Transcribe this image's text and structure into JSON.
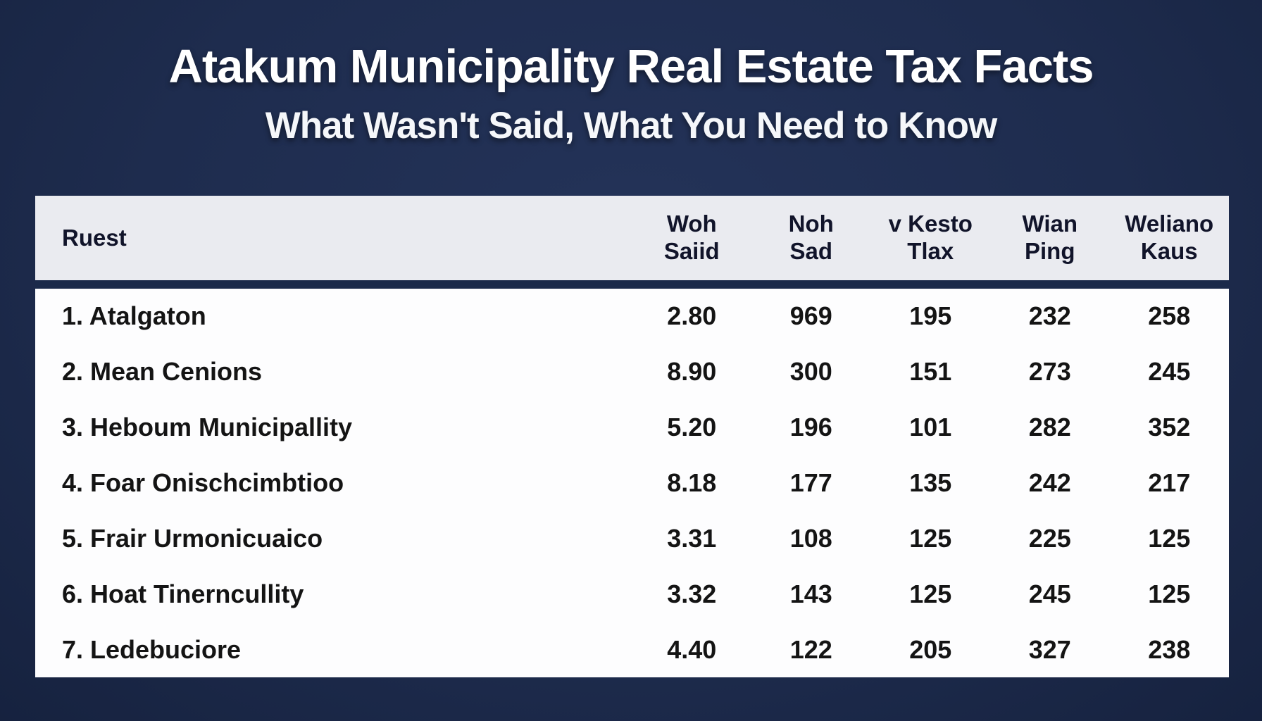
{
  "title": "Atakum Municipality Real Estate Tax Facts",
  "subtitle": "What Wasn't Said, What You Need to Know",
  "colors": {
    "background": "#1e2c4e",
    "header_bg": "#eaebf0",
    "body_bg": "#fdfdfe",
    "divider": "#1b2a4a",
    "title_text": "#ffffff",
    "cell_text": "#141414"
  },
  "chart_data": {
    "type": "table",
    "title": "Atakum Municipality Real Estate Tax Facts",
    "subtitle": "What Wasn't Said, What You Need to Know",
    "columns": [
      "Ruest",
      "Woh Saiid",
      "Noh Sad",
      "v Kesto Tlax",
      "Wian Ping",
      "Weliano Kaus"
    ],
    "columns_display": [
      "Ruest",
      "Woh\nSaiid",
      "Noh\nSad",
      "v Kesto\nTlax",
      "Wian\nPing",
      "Weliano\nKaus"
    ],
    "rows": [
      [
        "1. Atalgaton",
        "2.80",
        "969",
        "195",
        "232",
        "258"
      ],
      [
        "2. Mean Cenions",
        "8.90",
        "300",
        "151",
        "273",
        "245"
      ],
      [
        "3. Heboum Municipallity",
        "5.20",
        "196",
        "101",
        "282",
        "352"
      ],
      [
        "4. Foar Onischcimbtioo",
        "8.18",
        "177",
        "135",
        "242",
        "217"
      ],
      [
        "5. Frair Urmonicuaico",
        "3.31",
        "108",
        "125",
        "225",
        "125"
      ],
      [
        "6. Hoat Tinerncullity",
        "3.32",
        "143",
        "125",
        "245",
        "125"
      ],
      [
        "7. Ledebuciore",
        "4.40",
        "122",
        "205",
        "327",
        "238"
      ]
    ]
  }
}
